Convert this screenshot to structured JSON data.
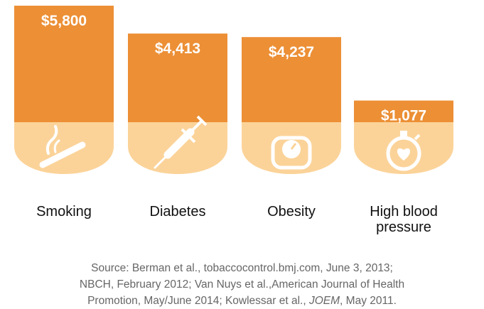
{
  "chart_data": {
    "type": "bar",
    "categories": [
      "Smoking",
      "Diabetes",
      "Obesity",
      "High blood pressure"
    ],
    "category_lines": [
      [
        "Smoking"
      ],
      [
        "Diabetes"
      ],
      [
        "Obesity"
      ],
      [
        "High blood",
        "pressure"
      ]
    ],
    "values": [
      5800,
      4413,
      4237,
      1077
    ],
    "value_labels": [
      "$5,800",
      "$4,413",
      "$4,237",
      "$1,077"
    ],
    "icons": [
      "cigarette-icon",
      "syringe-icon",
      "scale-icon",
      "heart-stopwatch-icon"
    ],
    "ylim": [
      0,
      5800
    ]
  },
  "colors": {
    "bar": "#EC8F35",
    "base": "#FBD399",
    "icon": "#ffffff"
  },
  "source": {
    "line1": "Source: Berman et al., tobaccocontrol.bmj.com, June 3, 2013;",
    "line2": "NBCH, February 2012; Van Nuys et al.,American Journal of Health",
    "line3_a": "Promotion, May/June 2014; Kowlessar et al., ",
    "line3_journal": "JOEM",
    "line3_b": ", May 2011."
  }
}
